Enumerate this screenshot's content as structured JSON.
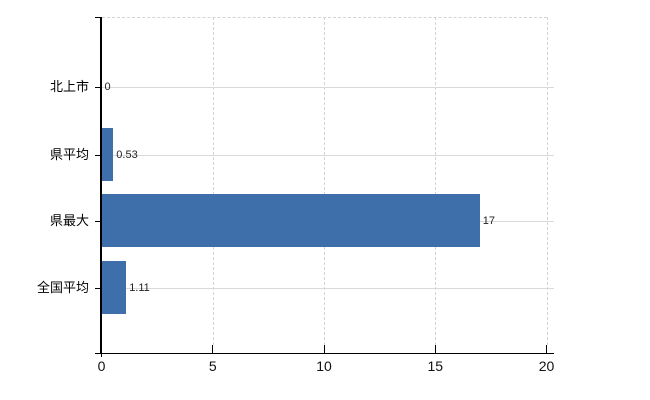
{
  "chart_data": {
    "type": "bar",
    "orientation": "horizontal",
    "title": "",
    "categories": [
      "北上市",
      "県平均",
      "県最大",
      "全国平均"
    ],
    "values": [
      0,
      0.53,
      17,
      1.11
    ],
    "value_labels": [
      "0",
      "0.53",
      "17",
      "1.11"
    ],
    "x_ticks": [
      0,
      5,
      10,
      15,
      20
    ],
    "x_tick_labels": [
      "0",
      "5",
      "10",
      "15",
      "20"
    ],
    "xlim": [
      0,
      20
    ],
    "xlabel": "",
    "ylabel": "",
    "legend_position": "none",
    "grid": true,
    "colors": {
      "bar": "#3f6faa",
      "axis": "#000000",
      "horizontal_gridline": "#d7dbd7",
      "vertical_gridline": "#d4d4d4",
      "category_label": "#000000",
      "tick_label": "#111111",
      "value_label": "#222222",
      "background": "#ffffff"
    }
  }
}
